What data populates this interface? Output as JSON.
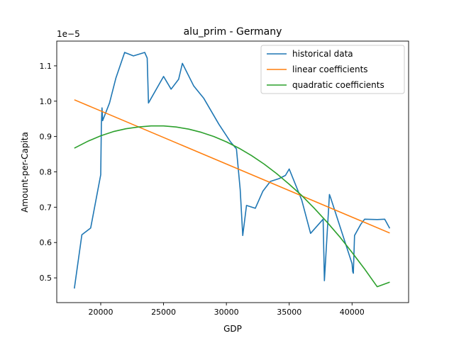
{
  "chart_data": {
    "type": "line",
    "title": "alu_prim - Germany",
    "xlabel": "GDP",
    "ylabel": "Amount-per-Capita",
    "y_scale_label": "1e−5",
    "xlim": [
      16500,
      44500
    ],
    "ylim": [
      0.43,
      1.17
    ],
    "x_ticks": [
      20000,
      25000,
      30000,
      35000,
      40000
    ],
    "x_tick_labels": [
      "20000",
      "25000",
      "30000",
      "35000",
      "40000"
    ],
    "y_ticks": [
      0.5,
      0.6,
      0.7,
      0.8,
      0.9,
      1.0,
      1.1
    ],
    "y_tick_labels": [
      "0.5",
      "0.6",
      "0.7",
      "0.8",
      "0.9",
      "1.0",
      "1.1"
    ],
    "grid": false,
    "legend_position": "top-right",
    "series": [
      {
        "name": "historical data",
        "color": "#1f77b4",
        "x": [
          17900,
          18500,
          19200,
          20000,
          20050,
          20100,
          20150,
          20700,
          21200,
          21900,
          22600,
          23500,
          23700,
          23800,
          25000,
          25600,
          26200,
          26500,
          27400,
          28200,
          29400,
          30300,
          30800,
          31100,
          31300,
          31600,
          32300,
          32900,
          33500,
          34200,
          34700,
          35000,
          36000,
          36700,
          37700,
          37800,
          38200,
          38300,
          40000,
          40050,
          40100,
          40200,
          40700,
          41000,
          42000,
          42600,
          43000
        ],
        "y": [
          0.47,
          0.622,
          0.641,
          0.792,
          0.935,
          0.981,
          0.945,
          0.995,
          1.065,
          1.138,
          1.128,
          1.138,
          1.122,
          0.995,
          1.07,
          1.034,
          1.062,
          1.107,
          1.043,
          1.008,
          0.935,
          0.886,
          0.865,
          0.75,
          0.62,
          0.705,
          0.697,
          0.745,
          0.773,
          0.781,
          0.79,
          0.808,
          0.72,
          0.626,
          0.666,
          0.492,
          0.736,
          0.726,
          0.54,
          0.518,
          0.513,
          0.62,
          0.652,
          0.666,
          0.665,
          0.666,
          0.64
        ]
      },
      {
        "name": "linear coefficients",
        "color": "#ff7f0e",
        "x": [
          17900,
          43000
        ],
        "y": [
          1.004,
          0.627
        ]
      },
      {
        "name": "quadratic coefficients",
        "color": "#2ca02c",
        "x": [
          17900,
          19000,
          20000,
          21000,
          22000,
          23000,
          24000,
          25000,
          26000,
          27000,
          28000,
          29000,
          30000,
          31000,
          32000,
          33000,
          34000,
          35000,
          36000,
          37000,
          38000,
          39000,
          40000,
          41000,
          42000,
          43000
        ],
        "y": [
          0.867,
          0.887,
          0.902,
          0.914,
          0.922,
          0.927,
          0.93,
          0.93,
          0.927,
          0.921,
          0.912,
          0.9,
          0.885,
          0.867,
          0.846,
          0.822,
          0.795,
          0.765,
          0.733,
          0.697,
          0.658,
          0.617,
          0.572,
          0.525,
          0.475,
          0.488
        ]
      }
    ]
  }
}
